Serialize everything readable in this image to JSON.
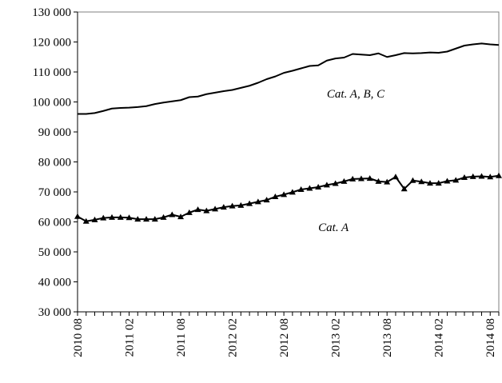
{
  "chart_data": {
    "type": "line",
    "title": "",
    "xlabel": "",
    "ylabel": "",
    "ylim": [
      30000,
      130000
    ],
    "y_ticks": [
      30000,
      40000,
      50000,
      60000,
      70000,
      80000,
      90000,
      100000,
      110000,
      120000,
      130000
    ],
    "y_tick_labels": [
      "30 000",
      "40 000",
      "50 000",
      "60 000",
      "70 000",
      "80 000",
      "90 000",
      "100 000",
      "110 000",
      "120 000",
      "130 000"
    ],
    "x_tick_labels": [
      "2010 08",
      "2011 02",
      "2011 08",
      "2012 02",
      "2012 08",
      "2013 02",
      "2013 08",
      "2014 02",
      "2014 08"
    ],
    "x": [
      "2010 08",
      "2010 09",
      "2010 10",
      "2010 11",
      "2010 12",
      "2011 01",
      "2011 02",
      "2011 03",
      "2011 04",
      "2011 05",
      "2011 06",
      "2011 07",
      "2011 08",
      "2011 09",
      "2011 10",
      "2011 11",
      "2011 12",
      "2012 01",
      "2012 02",
      "2012 03",
      "2012 04",
      "2012 05",
      "2012 06",
      "2012 07",
      "2012 08",
      "2012 09",
      "2012 10",
      "2012 11",
      "2012 12",
      "2013 01",
      "2013 02",
      "2013 03",
      "2013 04",
      "2013 05",
      "2013 06",
      "2013 07",
      "2013 08",
      "2013 09",
      "2013 10",
      "2013 11",
      "2013 12",
      "2014 01",
      "2014 02",
      "2014 03",
      "2014 04",
      "2014 05",
      "2014 06",
      "2014 07",
      "2014 08",
      "2014 09"
    ],
    "grid": false,
    "legend": "none",
    "series": [
      {
        "name": "Cat. A, B, C",
        "marker": "none",
        "color": "#000000",
        "values": [
          96000,
          96000,
          96300,
          97000,
          97800,
          98000,
          98100,
          98300,
          98600,
          99300,
          99800,
          100200,
          100600,
          101600,
          101800,
          102600,
          103100,
          103600,
          104000,
          104700,
          105400,
          106400,
          107600,
          108500,
          109700,
          110400,
          111200,
          112000,
          112200,
          113800,
          114500,
          114800,
          116000,
          115800,
          115600,
          116200,
          115000,
          115600,
          116300,
          116200,
          116300,
          116500,
          116400,
          116800,
          117800,
          118800,
          119200,
          119500,
          119200,
          119000
        ]
      },
      {
        "name": "Cat. A",
        "marker": "triangle",
        "color": "#000000",
        "values": [
          61800,
          60200,
          60700,
          61300,
          61500,
          61500,
          61400,
          60900,
          60900,
          60900,
          61500,
          62400,
          61700,
          63100,
          64100,
          63700,
          64300,
          64900,
          65300,
          65500,
          66100,
          66700,
          67300,
          68400,
          69100,
          69900,
          70800,
          71200,
          71600,
          72300,
          72800,
          73500,
          74300,
          74400,
          74500,
          73500,
          73300,
          75000,
          71000,
          73800,
          73400,
          72900,
          72900,
          73600,
          73900,
          74800,
          75100,
          75200,
          75000,
          75400
        ]
      }
    ],
    "annotations": [
      {
        "text": "Cat. A, B, C",
        "x": "2013 01",
        "y": 101500
      },
      {
        "text": "Cat. A",
        "x": "2012 12",
        "y": 57000
      }
    ]
  }
}
